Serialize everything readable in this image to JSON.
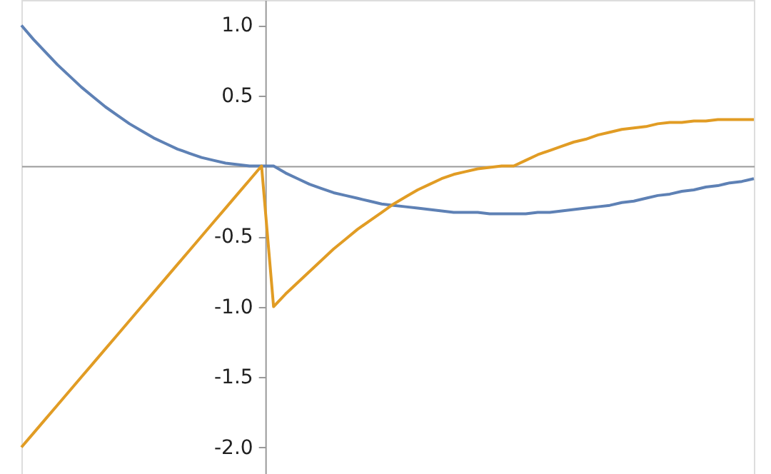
{
  "chart_data": {
    "type": "line",
    "ylim": [
      -2.19,
      1.18
    ],
    "categories": [
      null,
      null,
      null,
      null,
      null,
      null,
      null,
      null,
      null,
      null,
      null,
      null,
      null,
      null,
      null,
      null,
      null,
      null,
      null,
      null,
      null,
      null,
      null,
      null,
      null,
      null,
      null,
      null,
      null,
      null,
      null,
      null,
      null,
      null,
      null,
      null,
      null,
      null,
      null,
      null,
      null,
      null,
      null,
      null,
      null,
      null,
      null,
      null,
      null,
      null,
      null,
      null,
      null,
      null,
      null,
      null,
      null,
      null,
      null,
      null,
      null,
      null
    ],
    "yticks": [
      {
        "value": -2,
        "label": "-2.0"
      },
      {
        "value": -1.5,
        "label": "-1.5"
      },
      {
        "value": -1,
        "label": "-1.0"
      },
      {
        "value": -0.5,
        "label": "-0.5"
      },
      {
        "value": 0.5,
        "label": "0.5"
      },
      {
        "value": 1,
        "label": "1.0"
      }
    ],
    "tick_labels": "y",
    "grid": false,
    "marker": "none",
    "line_style": "solid",
    "series": [
      {
        "color": "#5e81b5",
        "values": [
          1,
          0.9,
          0.81,
          0.72,
          0.64,
          0.56,
          0.49,
          0.42,
          0.36,
          0.3,
          0.25,
          0.2,
          0.16,
          0.12,
          0.09,
          0.06,
          0.04,
          0.02,
          0.01,
          0,
          0,
          0,
          -0.05,
          -0.09,
          -0.13,
          -0.16,
          -0.19,
          -0.21,
          -0.23,
          -0.25,
          -0.27,
          -0.28,
          -0.29,
          -0.3,
          -0.31,
          -0.32,
          -0.33,
          -0.33,
          -0.33,
          -0.34,
          -0.34,
          -0.34,
          -0.34,
          -0.33,
          -0.33,
          -0.32,
          -0.31,
          -0.3,
          -0.29,
          -0.28,
          -0.26,
          -0.25,
          -0.23,
          -0.21,
          -0.2,
          -0.18,
          -0.17,
          -0.15,
          -0.14,
          -0.12,
          -0.11,
          -0.09
        ]
      },
      {
        "color": "#e19c24",
        "values": [
          -2,
          -1.9,
          -1.8,
          -1.7,
          -1.6,
          -1.5,
          -1.4,
          -1.3,
          -1.2,
          -1.1,
          -1,
          -0.9,
          -0.8,
          -0.7,
          -0.6,
          -0.5,
          -0.4,
          -0.3,
          -0.2,
          -0.1,
          0,
          -1,
          -0.91,
          -0.83,
          -0.75,
          -0.67,
          -0.59,
          -0.52,
          -0.45,
          -0.39,
          -0.33,
          -0.27,
          -0.22,
          -0.17,
          -0.13,
          -0.09,
          -0.06,
          -0.04,
          -0.02,
          -0.01,
          0,
          0,
          0.04,
          0.08,
          0.11,
          0.14,
          0.17,
          0.19,
          0.22,
          0.24,
          0.26,
          0.27,
          0.28,
          0.3,
          0.31,
          0.31,
          0.32,
          0.32,
          0.33,
          0.33,
          0.33,
          0.33
        ]
      }
    ]
  }
}
